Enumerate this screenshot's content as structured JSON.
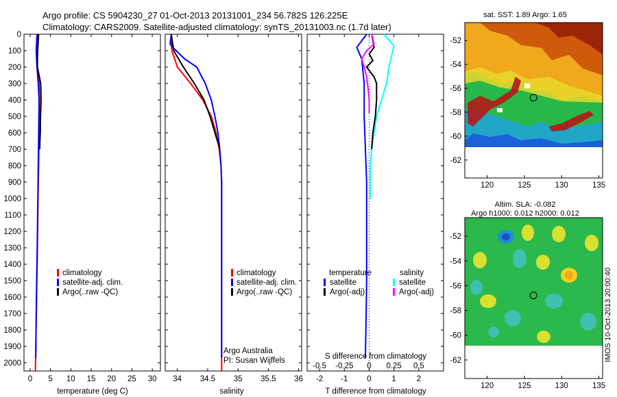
{
  "header": {
    "line1": "Argo profile: CS 5904230_27 01-Oct-2013 20131001_234 56.782S 126.225E",
    "line2": "Climatology: CARS2009. Satellite-adjusted climatology: synTS_20131003.nc (1.7d later)"
  },
  "chart_data": [
    {
      "type": "line",
      "xlabel": "temperature (deg C)",
      "ylabel": "",
      "xlim": [
        -1.5,
        32
      ],
      "ylim": [
        2050,
        0
      ],
      "y_reversed": true,
      "xticks": [
        "0",
        "5",
        "10",
        "15",
        "20",
        "25",
        "30"
      ],
      "yticks": [
        "0",
        "100",
        "200",
        "300",
        "400",
        "500",
        "600",
        "700",
        "800",
        "900",
        "1000",
        "1100",
        "1200",
        "1300",
        "1400",
        "1500",
        "1600",
        "1700",
        "1800",
        "1900",
        "2000"
      ],
      "legend_position": "center",
      "legend": [
        "climatology",
        "satellite-adj. clim.",
        "Argo(..raw -QC)"
      ],
      "series": [
        {
          "name": "climatology",
          "color": "#ff0000",
          "x": [
            1.75,
            1.65,
            1.8,
            2.2,
            2.3,
            2.2,
            2.1,
            1.95,
            1.8,
            1.6,
            1.4,
            1.3
          ],
          "y": [
            0,
            100,
            200,
            300,
            400,
            600,
            800,
            1000,
            1300,
            1600,
            1900,
            2050
          ]
        },
        {
          "name": "satellite-adj. clim.",
          "color": "#0000ff",
          "x": [
            1.7,
            1.5,
            1.7,
            2.0,
            2.2,
            2.1,
            2.0,
            1.9,
            1.75,
            1.55,
            1.4
          ],
          "y": [
            0,
            100,
            200,
            300,
            400,
            600,
            800,
            1000,
            1300,
            1600,
            1970
          ]
        },
        {
          "name": "Argo(..raw -QC)",
          "color": "#000000",
          "x": [
            2.1,
            1.9,
            1.8,
            1.8,
            2.2,
            2.6,
            2.7,
            2.55,
            2.5,
            2.4,
            2.35
          ],
          "y": [
            0,
            80,
            150,
            200,
            250,
            300,
            400,
            500,
            600,
            650,
            700
          ]
        }
      ]
    },
    {
      "type": "line",
      "xlabel": "salinity",
      "xlim": [
        33.8,
        36.05
      ],
      "ylim": [
        2050,
        0
      ],
      "y_reversed": true,
      "xticks": [
        "34",
        "34.5",
        "35",
        "35.5",
        "36"
      ],
      "legend_position": "center",
      "legend": [
        "climatology",
        "satellite-adj. clim.",
        "Argo(..raw -QC)"
      ],
      "annotations": [
        "Argo Australia",
        "PI: Susan Wijffels"
      ],
      "series": [
        {
          "name": "climatology",
          "color": "#ff0000",
          "x": [
            33.9,
            33.91,
            34.0,
            34.22,
            34.42,
            34.56,
            34.64,
            34.69,
            34.72,
            34.73,
            34.73,
            34.73
          ],
          "y": [
            0,
            100,
            200,
            300,
            400,
            500,
            600,
            700,
            800,
            900,
            1100,
            2050
          ]
        },
        {
          "name": "satellite-adj. clim.",
          "color": "#0000ff",
          "x": [
            33.9,
            33.88,
            33.92,
            33.98,
            34.12,
            34.32,
            34.46,
            34.56,
            34.62,
            34.67,
            34.7,
            34.72,
            34.73,
            34.73
          ],
          "y": [
            0,
            60,
            80,
            100,
            150,
            200,
            300,
            400,
            500,
            600,
            700,
            800,
            900,
            1970
          ]
        },
        {
          "name": "Argo(..raw -QC)",
          "color": "#000000",
          "x": [
            33.9,
            33.94,
            34.1,
            34.28,
            34.44,
            34.54,
            34.62,
            34.66,
            34.69,
            34.7
          ],
          "y": [
            0,
            100,
            200,
            300,
            400,
            500,
            600,
            650,
            680,
            700
          ]
        }
      ]
    },
    {
      "type": "line",
      "xlabel": "T difference from climatology",
      "x2label": "S difference from climatology",
      "xlim": [
        -2.5,
        3
      ],
      "ylim": [
        2050,
        0
      ],
      "y_reversed": true,
      "xticks": [
        "-2",
        "-1",
        "0",
        "1",
        "2"
      ],
      "x2ticks": [
        "-0.5",
        "-0.25",
        "0",
        "0.25",
        "0.5"
      ],
      "legend_position": "center",
      "legend_titles": [
        "temperature",
        "salinity"
      ],
      "legend": [
        "satellite",
        "Argo(-adj)",
        "satellite",
        "Argo(-adj)"
      ],
      "series": [
        {
          "name": "satellite",
          "group": "temperature",
          "color": "#0000ff",
          "x": [
            -0.1,
            -0.5,
            -0.3,
            -0.2,
            -0.2,
            -0.15,
            -0.1,
            -0.1,
            -0.1,
            -0.1,
            -0.12,
            -0.15
          ],
          "y": [
            0,
            80,
            150,
            300,
            500,
            700,
            900,
            1100,
            1300,
            1500,
            1700,
            1970
          ]
        },
        {
          "name": "satellite",
          "group": "salinity",
          "color": "#00ffff",
          "x": [
            0.6,
            1.0,
            0.8,
            0.7,
            0.5,
            0.3,
            0.2,
            0.1,
            0.05,
            0.05,
            0.05
          ],
          "y": [
            0,
            70,
            200,
            300,
            400,
            500,
            600,
            700,
            800,
            900,
            1000
          ]
        },
        {
          "name": "Argo(-adj)",
          "group": "temperature",
          "color": "#000000",
          "x": [
            0.1,
            0.2,
            0.0,
            0.15,
            -0.1,
            0.2,
            0.3,
            0.3,
            0.25,
            0.15,
            0.1
          ],
          "y": [
            0,
            80,
            120,
            160,
            200,
            260,
            300,
            400,
            500,
            600,
            700
          ]
        },
        {
          "name": "Argo(-adj)",
          "group": "salinity",
          "color": "#ff00ff",
          "x": [
            0.1,
            0.2,
            -0.1,
            -0.3,
            -0.2,
            -0.1,
            -0.05,
            0.0,
            0.0
          ],
          "y": [
            0,
            60,
            100,
            150,
            200,
            260,
            320,
            400,
            480
          ]
        }
      ]
    },
    {
      "type": "heatmap",
      "title": "sat. SST: 1.89 Argo: 1.65",
      "xlim": [
        117,
        135.5
      ],
      "ylim": [
        -63.5,
        -50.5
      ],
      "xticks": [
        "120",
        "125",
        "130",
        "135"
      ],
      "yticks": [
        "-52",
        "-54",
        "-56",
        "-58",
        "-60",
        "-62"
      ],
      "marker": {
        "lon": 126.225,
        "lat": -56.782
      }
    },
    {
      "type": "heatmap",
      "title": "Altim. SLA: -0.082",
      "subtitle": "Argo h1000: 0.012 h2000: 0.012",
      "side_label": "IMOS 10-Oct-2013 20:00:40",
      "xlim": [
        117,
        135.5
      ],
      "ylim": [
        -63.5,
        -50.5
      ],
      "xticks": [
        "120",
        "125",
        "130",
        "135"
      ],
      "yticks": [
        "-52",
        "-54",
        "-56",
        "-58",
        "-60",
        "-62"
      ],
      "marker": {
        "lon": 126.225,
        "lat": -56.782
      }
    }
  ]
}
